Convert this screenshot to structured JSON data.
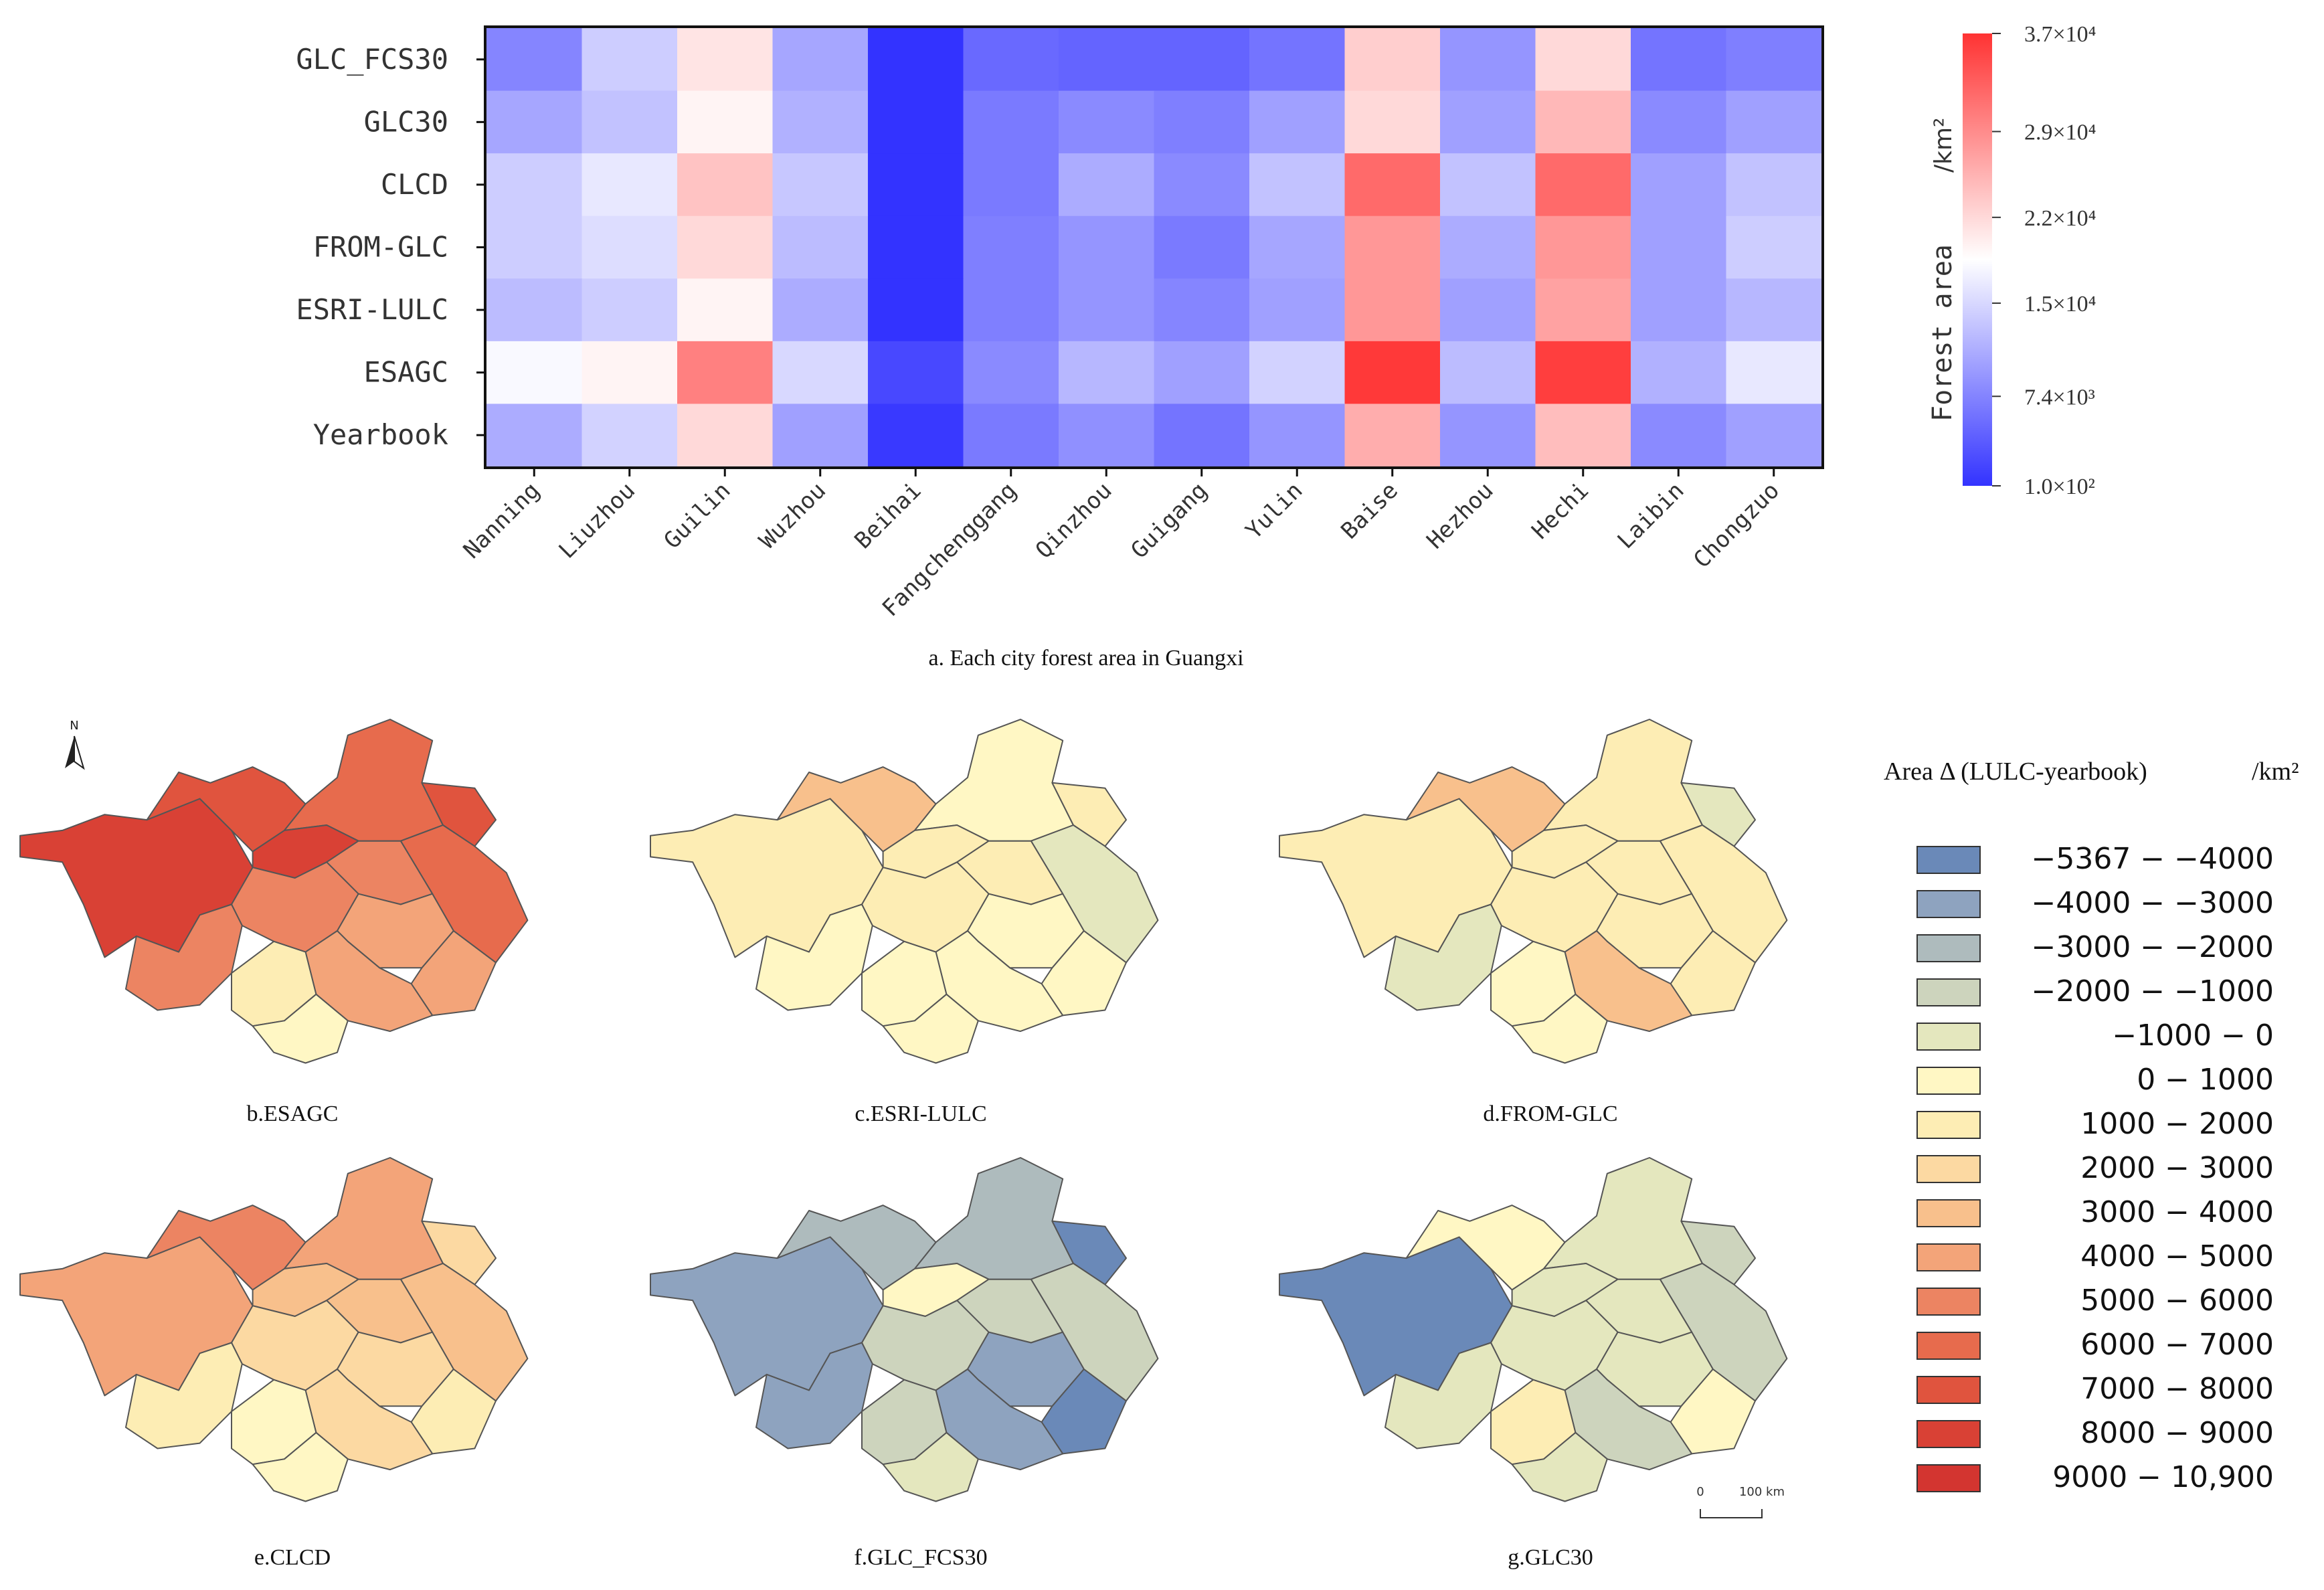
{
  "chart_data": {
    "type": "heatmap",
    "title": "a. Each city forest area in Guangxi",
    "rows": [
      "GLC_FCS30",
      "GLC30",
      "CLCD",
      "FROM-GLC",
      "ESRI-LULC",
      "ESAGC",
      "Yearbook"
    ],
    "columns": [
      "Nanning",
      "Liuzhou",
      "Guilin",
      "Wuzhou",
      "Beihai",
      "Fangchenggang",
      "Qinzhou",
      "Guigang",
      "Yulin",
      "Baise",
      "Hezhou",
      "Hechi",
      "Laibin",
      "Chongzuo"
    ],
    "values": [
      [
        7500,
        14000,
        21000,
        10500,
        100,
        5000,
        4500,
        4500,
        6000,
        23000,
        9000,
        22000,
        6000,
        7000
      ],
      [
        10500,
        13000,
        19500,
        11500,
        100,
        6500,
        8000,
        7000,
        10000,
        22000,
        10000,
        25000,
        8000,
        10000
      ],
      [
        14000,
        16500,
        24000,
        13500,
        100,
        6500,
        11000,
        8000,
        13000,
        32000,
        13000,
        32000,
        10000,
        13000
      ],
      [
        14000,
        15500,
        22000,
        12500,
        100,
        7000,
        9000,
        6500,
        10500,
        28000,
        11000,
        28000,
        10000,
        14000
      ],
      [
        12500,
        14000,
        19500,
        11000,
        100,
        7000,
        9000,
        7500,
        10000,
        28000,
        10000,
        27000,
        10000,
        12000
      ],
      [
        18000,
        19500,
        30000,
        15000,
        2000,
        8000,
        12000,
        10000,
        14500,
        36500,
        12500,
        36000,
        11500,
        16500
      ],
      [
        11000,
        14500,
        22000,
        10000,
        600,
        6500,
        8500,
        6000,
        9000,
        26000,
        9000,
        24500,
        8000,
        10000
      ]
    ],
    "colorbar": {
      "label": "Forest area",
      "unit": "/km²",
      "min": 100,
      "max": 37000,
      "ticks": [
        {
          "value": 37000,
          "label": "3.7×10⁴"
        },
        {
          "value": 29000,
          "label": "2.9×10⁴"
        },
        {
          "value": 22000,
          "label": "2.2×10⁴"
        },
        {
          "value": 15000,
          "label": "1.5×10⁴"
        },
        {
          "value": 7400,
          "label": "7.4×10³"
        },
        {
          "value": 100,
          "label": "1.0×10²"
        }
      ],
      "colors": {
        "low": "#3333ff",
        "mid": "#ffffff",
        "high": "#ff3333"
      }
    }
  },
  "maps": {
    "north_label": "N",
    "scale_bar": {
      "zero": "0",
      "distance": "100 km"
    },
    "panels": [
      {
        "caption": "b.ESAGC",
        "classes": [
          13,
          12,
          11,
          13,
          12,
          11,
          10,
          10,
          10,
          9,
          9,
          9,
          6,
          5
        ]
      },
      {
        "caption": "c.ESRI-LULC",
        "classes": [
          6,
          8,
          5,
          6,
          6,
          4,
          6,
          6,
          5,
          5,
          5,
          5,
          5,
          5
        ]
      },
      {
        "caption": "d.FROM-GLC",
        "classes": [
          6,
          8,
          6,
          6,
          4,
          6,
          6,
          6,
          4,
          6,
          6,
          8,
          5,
          5
        ]
      },
      {
        "caption": "e.CLCD",
        "classes": [
          9,
          10,
          9,
          8,
          7,
          8,
          8,
          7,
          6,
          7,
          6,
          7,
          5,
          5
        ]
      },
      {
        "caption": "f.GLC_FCS30",
        "classes": [
          1,
          2,
          2,
          5,
          0,
          3,
          3,
          3,
          1,
          1,
          0,
          1,
          3,
          4
        ]
      },
      {
        "caption": "g.GLC30",
        "classes": [
          0,
          5,
          4,
          4,
          3,
          3,
          4,
          4,
          4,
          4,
          5,
          3,
          6,
          4
        ]
      }
    ],
    "legend": {
      "title": "Area Δ (LULC-yearbook)",
      "unit": "/km²",
      "items": [
        {
          "label": "−5367 − −4000",
          "color": "#6a89b8"
        },
        {
          "label": "−4000 − −3000",
          "color": "#8ea3bf"
        },
        {
          "label": "−3000 − −2000",
          "color": "#aebbbd"
        },
        {
          "label": "−2000 − −1000",
          "color": "#cdd4bd"
        },
        {
          "label": "−1000 − 0",
          "color": "#e4e7be"
        },
        {
          "label": "0 − 1000",
          "color": "#fff7c4"
        },
        {
          "label": "1000 − 2000",
          "color": "#fdedb4"
        },
        {
          "label": "2000 − 3000",
          "color": "#fcd9a2"
        },
        {
          "label": "3000 − 4000",
          "color": "#f8c08c"
        },
        {
          "label": "4000 − 5000",
          "color": "#f3a479"
        },
        {
          "label": "5000 − 6000",
          "color": "#ec8462"
        },
        {
          "label": "6000 − 7000",
          "color": "#e76b4d"
        },
        {
          "label": "7000 − 8000",
          "color": "#e0543e"
        },
        {
          "label": "8000 − 9000",
          "color": "#d94135"
        },
        {
          "label": "9000 − 10,900",
          "color": "#d33530"
        }
      ]
    }
  }
}
